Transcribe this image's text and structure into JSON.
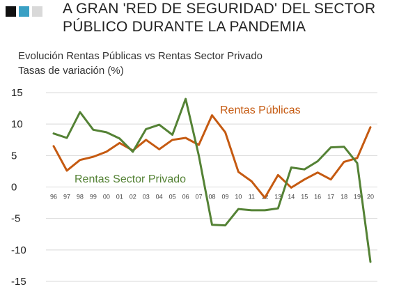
{
  "header": {
    "title": "A GRAN 'RED DE SEGURIDAD' DEL SECTOR PÚBLICO DURANTE LA PANDEMIA",
    "squares": [
      "#111111",
      "#3aa0c4",
      "#d9d9d9"
    ]
  },
  "chart_data": {
    "type": "line",
    "title": "Evolución Rentas Públicas vs Rentas Sector Privado",
    "subtitle": "Tasas de variación (%)",
    "categories": [
      "96",
      "97",
      "98",
      "99",
      "00",
      "01",
      "02",
      "03",
      "04",
      "05",
      "06",
      "07",
      "08",
      "09",
      "10",
      "11",
      "12",
      "13",
      "14",
      "15",
      "16",
      "17",
      "18",
      "19",
      "20"
    ],
    "y_ticks": [
      "15",
      "10",
      "5",
      "0",
      "-5",
      "-10",
      "-15"
    ],
    "ylim": [
      -15,
      15
    ],
    "grid": true,
    "series": [
      {
        "name": "Rentas Públicas",
        "color": "#c55a11",
        "values": [
          6.5,
          2.6,
          4.3,
          4.8,
          5.6,
          7.0,
          5.8,
          7.5,
          6.0,
          7.5,
          7.8,
          6.7,
          11.4,
          8.7,
          2.4,
          0.9,
          -1.7,
          1.9,
          -0.1,
          1.2,
          2.3,
          1.2,
          4.0,
          4.6,
          9.5
        ]
      },
      {
        "name": "Rentas Sector Privado",
        "color": "#548235",
        "values": [
          8.5,
          7.8,
          11.9,
          9.1,
          8.7,
          7.7,
          5.6,
          9.2,
          9.9,
          8.3,
          14.0,
          5.0,
          -6.0,
          -6.1,
          -3.5,
          -3.7,
          -3.7,
          -3.4,
          3.1,
          2.8,
          4.1,
          6.3,
          6.4,
          3.8,
          -11.9
        ]
      }
    ]
  }
}
